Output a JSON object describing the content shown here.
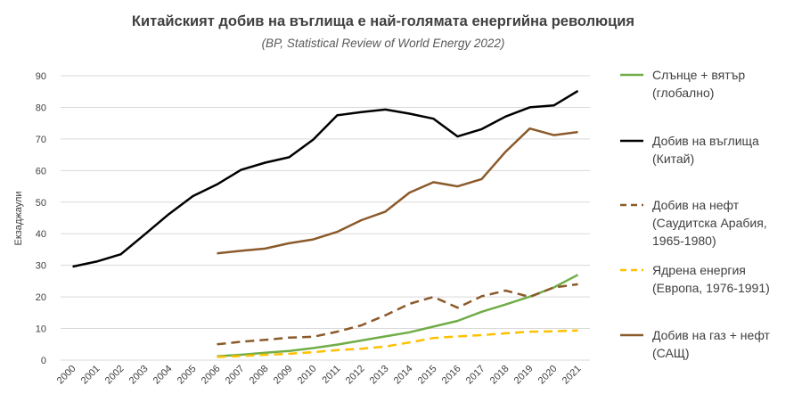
{
  "chart_data": {
    "type": "line",
    "title": "Китайският добив на въглища е най-голямата енергийна революция",
    "subtitle": "(BP, Statistical Review of World Energy 2022)",
    "ylabel": "Екзаджаули",
    "xlabel": "",
    "ylim": [
      0,
      90
    ],
    "yticks": [
      0,
      10,
      20,
      30,
      40,
      50,
      60,
      70,
      80,
      90
    ],
    "grid": true,
    "legend_position": "right",
    "categories": [
      "2000",
      "2001",
      "2002",
      "2003",
      "2004",
      "2005",
      "2006",
      "2007",
      "2008",
      "2009",
      "2010",
      "2011",
      "2012",
      "2013",
      "2014",
      "2015",
      "2016",
      "2017",
      "2018",
      "2019",
      "2020",
      "2021"
    ],
    "series": [
      {
        "name": "Слънце + вятър (глобално)",
        "legend_lines": [
          "Слънце + вятър",
          "(глобално)"
        ],
        "color": "#70ad47",
        "dash": "solid",
        "values": [
          null,
          null,
          null,
          null,
          null,
          null,
          1.2,
          1.7,
          2.3,
          2.9,
          3.8,
          4.9,
          6.2,
          7.5,
          8.8,
          10.6,
          12.4,
          15.3,
          17.6,
          20.1,
          23.0,
          27.0
        ]
      },
      {
        "name": "Добив на въглища (Китай)",
        "legend_lines": [
          "Добив на въглища",
          "(Китай)"
        ],
        "color": "#000000",
        "dash": "solid",
        "values": [
          29.6,
          31.2,
          33.5,
          39.8,
          46.2,
          51.9,
          55.6,
          60.2,
          62.5,
          64.2,
          69.8,
          77.5,
          78.5,
          79.3,
          78.0,
          76.4,
          70.8,
          73.1,
          77.1,
          80.0,
          80.6,
          85.2
        ]
      },
      {
        "name": "Добив на нефт (Саудитска Арабия, 1965-1980)",
        "legend_lines": [
          "Добив на нефт",
          "(Саудитска Арабия,",
          "1965-1980)"
        ],
        "color": "#8b5a2b",
        "dash": "dashed",
        "values": [
          null,
          null,
          null,
          null,
          null,
          null,
          5.0,
          5.8,
          6.4,
          7.1,
          7.4,
          9.0,
          11.0,
          14.2,
          17.8,
          20.0,
          16.6,
          20.2,
          22.0,
          20.0,
          23.0,
          24.0
        ]
      },
      {
        "name": "Ядрена енергия (Европа, 1976-1991)",
        "legend_lines": [
          "Ядрена енергия",
          "(Европа, 1976-1991)"
        ],
        "color": "#ffc000",
        "dash": "dashed",
        "values": [
          null,
          null,
          null,
          null,
          null,
          null,
          1.0,
          1.3,
          1.7,
          2.0,
          2.5,
          3.2,
          3.6,
          4.3,
          5.6,
          7.0,
          7.5,
          7.9,
          8.5,
          9.0,
          9.1,
          9.4
        ]
      },
      {
        "name": "Добив на газ + нефт (САЩ)",
        "legend_lines": [
          "Добив на газ + нефт",
          "(САЩ)"
        ],
        "color": "#8b5a2b",
        "dash": "solid",
        "values": [
          null,
          null,
          null,
          null,
          null,
          null,
          33.8,
          34.6,
          35.3,
          37.0,
          38.2,
          40.6,
          44.3,
          47.0,
          53.0,
          56.3,
          55.0,
          57.3,
          66.0,
          73.3,
          71.2,
          72.2
        ]
      }
    ]
  }
}
